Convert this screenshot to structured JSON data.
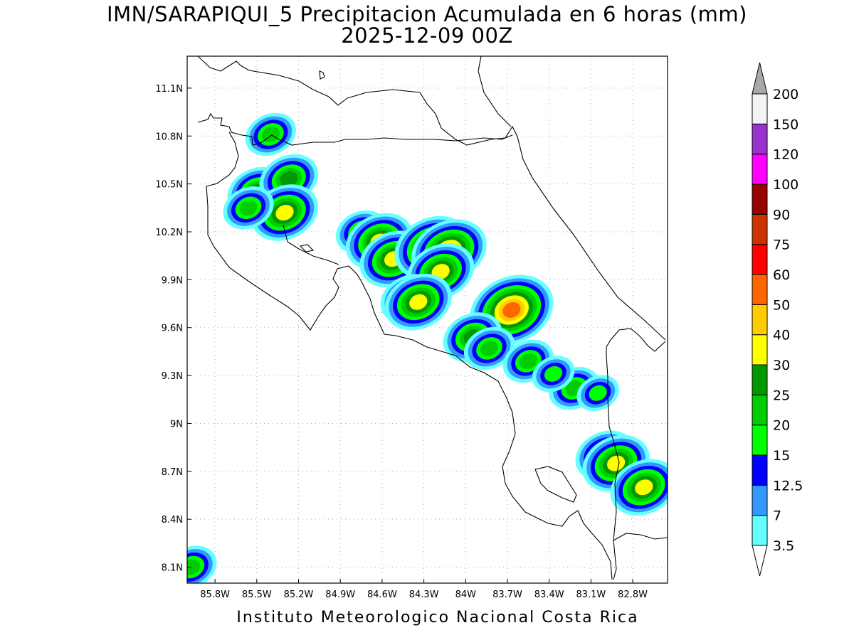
{
  "title": {
    "line1": "IMN/SARAPIQUI_5 Precipitacion Acumulada en 6 horas (mm)",
    "line2": "2025-12-09 00Z"
  },
  "footer": "Instituto Meteorologico Nacional Costa Rica",
  "map": {
    "lon_range": [
      -86.0,
      -82.55
    ],
    "lat_range": [
      8.0,
      11.3
    ],
    "lon_ticks": [
      {
        "value": -85.8,
        "label": "85.8W"
      },
      {
        "value": -85.5,
        "label": "85.5W"
      },
      {
        "value": -85.2,
        "label": "85.2W"
      },
      {
        "value": -84.9,
        "label": "84.9W"
      },
      {
        "value": -84.6,
        "label": "84.6W"
      },
      {
        "value": -84.3,
        "label": "84.3W"
      },
      {
        "value": -84.0,
        "label": "84W"
      },
      {
        "value": -83.7,
        "label": "83.7W"
      },
      {
        "value": -83.4,
        "label": "83.4W"
      },
      {
        "value": -83.1,
        "label": "83.1W"
      },
      {
        "value": -82.8,
        "label": "82.8W"
      }
    ],
    "lat_ticks": [
      {
        "value": 11.1,
        "label": "11.1N"
      },
      {
        "value": 10.8,
        "label": "10.8N"
      },
      {
        "value": 10.5,
        "label": "10.5N"
      },
      {
        "value": 10.2,
        "label": "10.2N"
      },
      {
        "value": 9.9,
        "label": "9.9N"
      },
      {
        "value": 9.6,
        "label": "9.6N"
      },
      {
        "value": 9.3,
        "label": "9.3N"
      },
      {
        "value": 9.0,
        "label": "9N"
      },
      {
        "value": 8.7,
        "label": "8.7N"
      },
      {
        "value": 8.4,
        "label": "8.4N"
      },
      {
        "value": 8.1,
        "label": "8.1N"
      }
    ],
    "grid": true
  },
  "colorbar": {
    "labels": [
      "3.5",
      "7",
      "12.5",
      "15",
      "20",
      "25",
      "30",
      "40",
      "50",
      "60",
      "75",
      "90",
      "100",
      "120",
      "150",
      "200"
    ],
    "colors": [
      "#66ffff",
      "#3399ff",
      "#0000ff",
      "#00ff00",
      "#00cc00",
      "#009900",
      "#ffff00",
      "#ffcc00",
      "#ff6600",
      "#ff0000",
      "#cc3300",
      "#990000",
      "#ff00ff",
      "#9933cc",
      "#f4f4f4"
    ],
    "low_color": "#ffffff",
    "high_color": "#a8a8a8"
  },
  "precip_cells": [
    {
      "lon": -85.5,
      "lat": 10.45,
      "peak": 5
    },
    {
      "lon": -85.27,
      "lat": 10.53,
      "peak": 5
    },
    {
      "lon": -85.3,
      "lat": 10.32,
      "peak": 6
    },
    {
      "lon": -85.56,
      "lat": 10.35,
      "peak": 4
    },
    {
      "lon": -84.75,
      "lat": 10.2,
      "peak": 4
    },
    {
      "lon": -84.62,
      "lat": 10.14,
      "peak": 6
    },
    {
      "lon": -84.52,
      "lat": 10.03,
      "peak": 6
    },
    {
      "lon": -84.24,
      "lat": 10.1,
      "peak": 7
    },
    {
      "lon": -84.12,
      "lat": 10.08,
      "peak": 7
    },
    {
      "lon": -84.18,
      "lat": 9.95,
      "peak": 6
    },
    {
      "lon": -84.4,
      "lat": 9.78,
      "peak": 5
    },
    {
      "lon": -84.34,
      "lat": 9.76,
      "peak": 6
    },
    {
      "lon": -83.67,
      "lat": 9.71,
      "peak": 8
    },
    {
      "lon": -83.95,
      "lat": 9.54,
      "peak": 5
    },
    {
      "lon": -83.83,
      "lat": 9.47,
      "peak": 4
    },
    {
      "lon": -83.55,
      "lat": 9.39,
      "peak": 4
    },
    {
      "lon": -83.22,
      "lat": 9.22,
      "peak": 4
    },
    {
      "lon": -83.0,
      "lat": 8.8,
      "peak": 5
    },
    {
      "lon": -82.92,
      "lat": 8.75,
      "peak": 6
    },
    {
      "lon": -82.72,
      "lat": 8.6,
      "peak": 6
    },
    {
      "lon": -85.97,
      "lat": 8.1,
      "peak": 4
    },
    {
      "lon": -85.4,
      "lat": 10.81,
      "peak": 4
    },
    {
      "lon": -83.05,
      "lat": 9.19,
      "peak": 3
    },
    {
      "lon": -83.37,
      "lat": 9.31,
      "peak": 3
    }
  ]
}
